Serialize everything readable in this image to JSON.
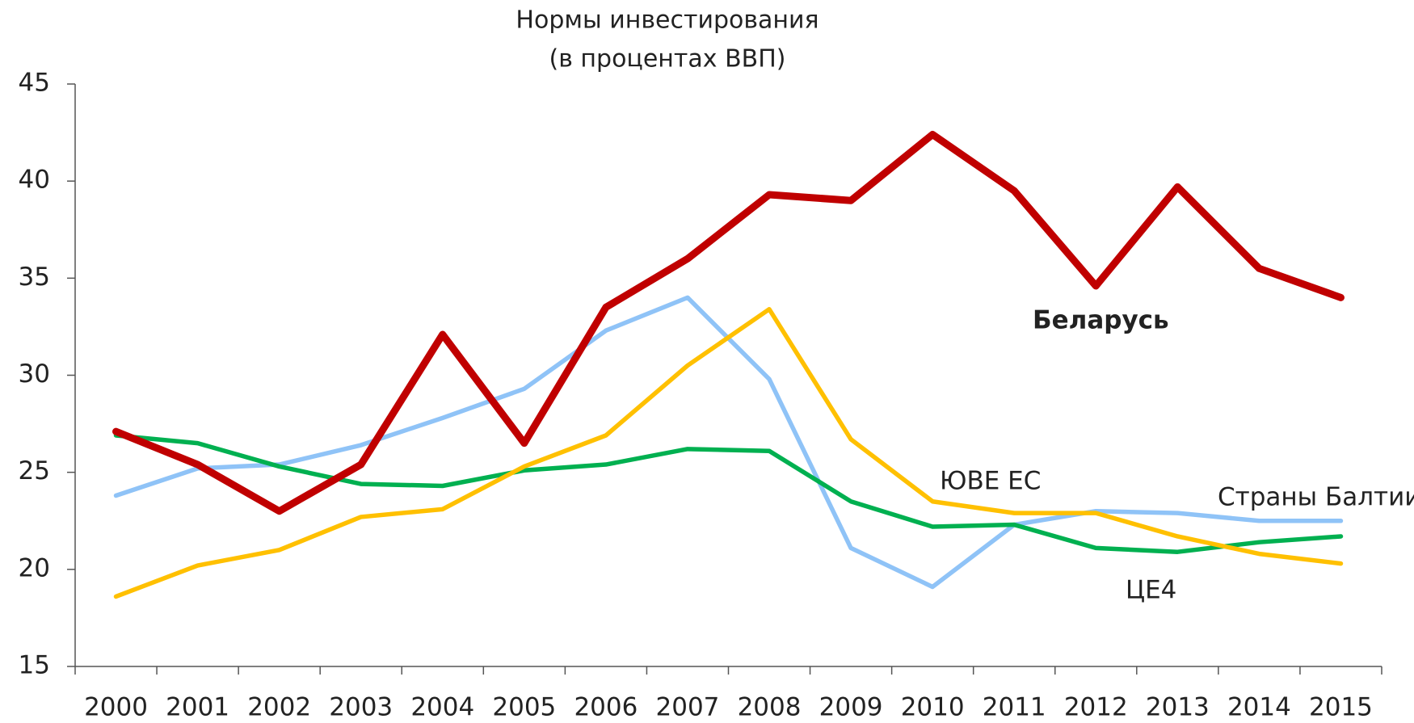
{
  "chart_data": {
    "type": "line",
    "title": "Нормы инвестирования",
    "subtitle": "(в процентах ВВП)",
    "categories": [
      "2000",
      "2001",
      "2002",
      "2003",
      "2004",
      "2005",
      "2006",
      "2007",
      "2008",
      "2009",
      "2010",
      "2011",
      "2012",
      "2013",
      "2014",
      "2015"
    ],
    "series": [
      {
        "name": "Беларусь",
        "color": "#c00000",
        "values": [
          27.1,
          25.4,
          23.0,
          25.4,
          32.1,
          26.5,
          33.5,
          36.0,
          39.3,
          39.0,
          42.4,
          39.5,
          34.6,
          39.7,
          35.5,
          34.0
        ]
      },
      {
        "name": "ЮВЕ ЕС",
        "color": "#ffc000",
        "values": [
          18.6,
          20.2,
          21.0,
          22.7,
          23.1,
          25.3,
          26.9,
          30.5,
          33.4,
          26.7,
          23.5,
          22.9,
          22.9,
          21.7,
          20.8,
          20.3
        ]
      },
      {
        "name": "Страны Балтии",
        "color": "#8fc3f7",
        "values": [
          23.8,
          25.2,
          25.4,
          26.4,
          27.8,
          29.3,
          32.3,
          34.0,
          29.8,
          21.1,
          19.1,
          22.3,
          23.0,
          22.9,
          22.5,
          22.5
        ]
      },
      {
        "name": "ЦЕ4",
        "color": "#00b050",
        "values": [
          26.9,
          26.5,
          25.3,
          24.4,
          24.3,
          25.1,
          25.4,
          26.2,
          26.1,
          23.5,
          22.2,
          22.3,
          21.1,
          20.9,
          21.4,
          21.7
        ]
      }
    ],
    "ylim": [
      15,
      45
    ],
    "yticks": [
      15,
      20,
      25,
      30,
      35,
      40,
      45
    ],
    "grid": false
  }
}
